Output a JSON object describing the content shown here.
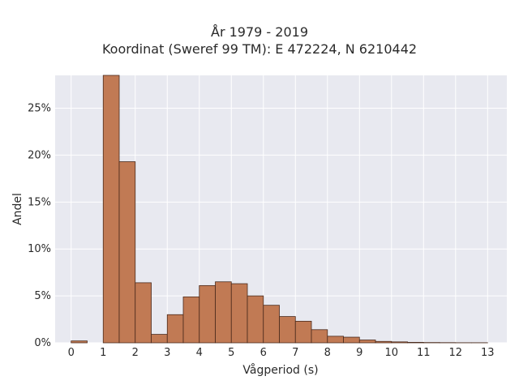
{
  "chart_data": {
    "type": "bar",
    "title": "År 1979 - 2019",
    "subtitle": "Koordinat (Sweref 99 TM): E 472224, N 6210442",
    "xlabel": "Vågperiod (s)",
    "ylabel": "Andel",
    "xlim": [
      -0.5,
      13.6
    ],
    "ylim": [
      0,
      0.285
    ],
    "x_ticks": [
      0,
      1,
      2,
      3,
      4,
      5,
      6,
      7,
      8,
      9,
      10,
      11,
      12,
      13
    ],
    "y_ticks": [
      0,
      0.05,
      0.1,
      0.15,
      0.2,
      0.25
    ],
    "y_tick_labels": [
      "0%",
      "5%",
      "10%",
      "15%",
      "20%",
      "25%"
    ],
    "grid": true,
    "bin_width": 0.5,
    "bins": [
      {
        "x0": 0.0,
        "value": 0.002
      },
      {
        "x0": 1.0,
        "value": 0.285
      },
      {
        "x0": 1.5,
        "value": 0.193
      },
      {
        "x0": 2.0,
        "value": 0.064
      },
      {
        "x0": 2.5,
        "value": 0.009
      },
      {
        "x0": 3.0,
        "value": 0.03
      },
      {
        "x0": 3.5,
        "value": 0.049
      },
      {
        "x0": 4.0,
        "value": 0.061
      },
      {
        "x0": 4.5,
        "value": 0.065
      },
      {
        "x0": 5.0,
        "value": 0.063
      },
      {
        "x0": 5.5,
        "value": 0.05
      },
      {
        "x0": 6.0,
        "value": 0.04
      },
      {
        "x0": 6.5,
        "value": 0.028
      },
      {
        "x0": 7.0,
        "value": 0.023
      },
      {
        "x0": 7.5,
        "value": 0.014
      },
      {
        "x0": 8.0,
        "value": 0.007
      },
      {
        "x0": 8.5,
        "value": 0.006
      },
      {
        "x0": 9.0,
        "value": 0.003
      },
      {
        "x0": 9.5,
        "value": 0.0015
      },
      {
        "x0": 10.0,
        "value": 0.001
      },
      {
        "x0": 10.5,
        "value": 0.0005
      },
      {
        "x0": 11.0,
        "value": 0.0003
      },
      {
        "x0": 11.5,
        "value": 0.0002
      },
      {
        "x0": 12.0,
        "value": 0.0001
      },
      {
        "x0": 12.5,
        "value": 0.0001
      }
    ],
    "colors": {
      "bar": "#c17a54",
      "bar_edge": "#4a2a1c",
      "plot_bg": "#e8e9f0",
      "grid": "#ffffff"
    }
  }
}
